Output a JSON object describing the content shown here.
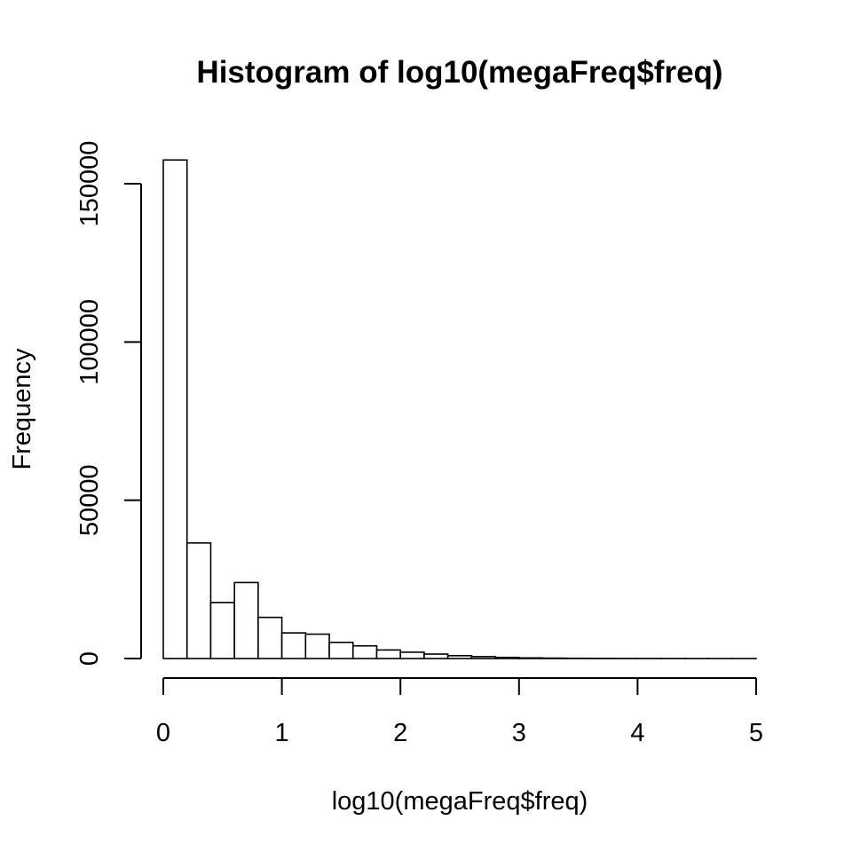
{
  "chart_data": {
    "type": "bar",
    "title": "Histogram of log10(megaFreq$freq)",
    "xlabel": "log10(megaFreq$freq)",
    "ylabel": "Frequency",
    "bin_width": 0.2,
    "bins": [
      {
        "x0": 0.0,
        "x1": 0.2,
        "count": 157500
      },
      {
        "x0": 0.2,
        "x1": 0.4,
        "count": 36500
      },
      {
        "x0": 0.4,
        "x1": 0.6,
        "count": 17700
      },
      {
        "x0": 0.6,
        "x1": 0.8,
        "count": 24000
      },
      {
        "x0": 0.8,
        "x1": 1.0,
        "count": 13000
      },
      {
        "x0": 1.0,
        "x1": 1.2,
        "count": 8100
      },
      {
        "x0": 1.2,
        "x1": 1.4,
        "count": 7700
      },
      {
        "x0": 1.4,
        "x1": 1.6,
        "count": 5100
      },
      {
        "x0": 1.6,
        "x1": 1.8,
        "count": 4000
      },
      {
        "x0": 1.8,
        "x1": 2.0,
        "count": 2700
      },
      {
        "x0": 2.0,
        "x1": 2.2,
        "count": 2000
      },
      {
        "x0": 2.2,
        "x1": 2.4,
        "count": 1400
      },
      {
        "x0": 2.4,
        "x1": 2.6,
        "count": 900
      },
      {
        "x0": 2.6,
        "x1": 2.8,
        "count": 600
      },
      {
        "x0": 2.8,
        "x1": 3.0,
        "count": 350
      },
      {
        "x0": 3.0,
        "x1": 3.2,
        "count": 200
      },
      {
        "x0": 3.2,
        "x1": 3.4,
        "count": 120
      },
      {
        "x0": 3.4,
        "x1": 3.6,
        "count": 70
      },
      {
        "x0": 3.6,
        "x1": 3.8,
        "count": 40
      },
      {
        "x0": 3.8,
        "x1": 4.0,
        "count": 25
      },
      {
        "x0": 4.0,
        "x1": 4.2,
        "count": 15
      },
      {
        "x0": 4.2,
        "x1": 4.4,
        "count": 10
      },
      {
        "x0": 4.4,
        "x1": 4.6,
        "count": 6
      },
      {
        "x0": 4.6,
        "x1": 4.8,
        "count": 4
      },
      {
        "x0": 4.8,
        "x1": 5.0,
        "count": 2
      }
    ],
    "xlim": [
      0,
      5
    ],
    "ylim": [
      0,
      160000
    ],
    "x_ticks": [
      0,
      1,
      2,
      3,
      4,
      5
    ],
    "x_tick_labels": [
      "0",
      "1",
      "2",
      "3",
      "4",
      "5"
    ],
    "y_ticks": [
      0,
      50000,
      100000,
      150000
    ],
    "y_tick_labels": [
      "0",
      "50000",
      "100000",
      "150000"
    ],
    "grid": false,
    "legend": "none"
  }
}
